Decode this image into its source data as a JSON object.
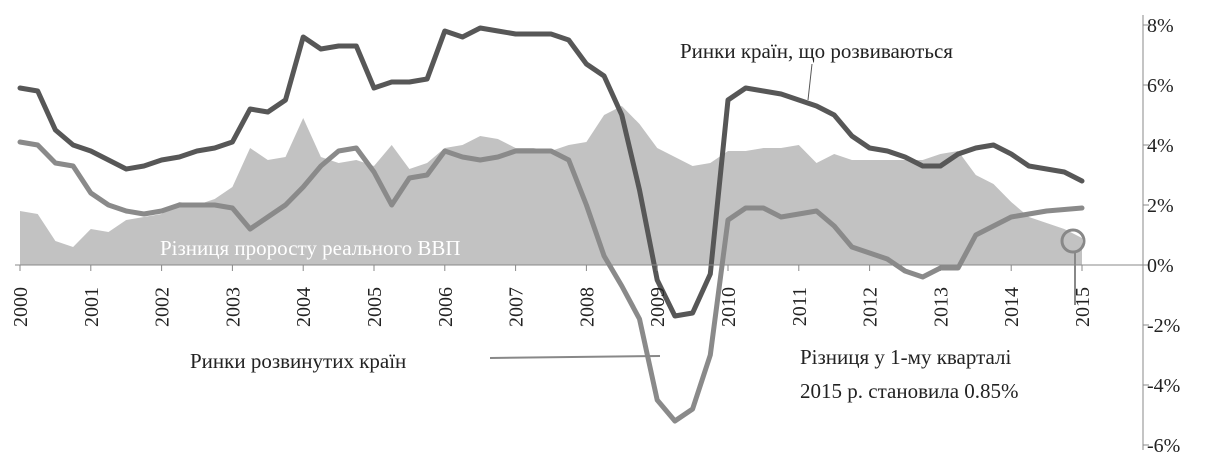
{
  "chart_data": {
    "type": "line",
    "x": [
      2000,
      2000.25,
      2000.5,
      2000.75,
      2001,
      2001.25,
      2001.5,
      2001.75,
      2002,
      2002.25,
      2002.5,
      2002.75,
      2003,
      2003.25,
      2003.5,
      2003.75,
      2004,
      2004.25,
      2004.5,
      2004.75,
      2005,
      2005.25,
      2005.5,
      2005.75,
      2006,
      2006.25,
      2006.5,
      2006.75,
      2007,
      2007.25,
      2007.5,
      2007.75,
      2008,
      2008.25,
      2008.5,
      2008.75,
      2009,
      2009.25,
      2009.5,
      2009.75,
      2010,
      2010.25,
      2010.5,
      2010.75,
      2011,
      2011.25,
      2011.5,
      2011.75,
      2012,
      2012.25,
      2012.5,
      2012.75,
      2013,
      2013.25,
      2013.5,
      2013.75,
      2014,
      2014.25,
      2014.5,
      2014.75,
      2015
    ],
    "series": [
      {
        "name": "Різниця проросту реального ВВП",
        "style": "area",
        "color": "#c2c2c2",
        "values": [
          1.8,
          1.7,
          0.8,
          0.6,
          1.2,
          1.1,
          1.5,
          1.6,
          1.7,
          2.1,
          2.0,
          2.2,
          2.6,
          3.9,
          3.5,
          3.6,
          4.9,
          3.6,
          3.4,
          3.5,
          3.3,
          4.0,
          3.2,
          3.4,
          3.9,
          4.0,
          4.3,
          4.2,
          3.9,
          3.9,
          3.8,
          4.0,
          4.1,
          5.0,
          5.3,
          4.7,
          3.9,
          3.6,
          3.3,
          3.4,
          3.8,
          3.8,
          3.9,
          3.9,
          4.0,
          3.4,
          3.7,
          3.5,
          3.5,
          3.5,
          3.5,
          3.5,
          3.7,
          3.8,
          3.0,
          2.7,
          2.1,
          1.6,
          1.4,
          1.2,
          0.9
        ]
      },
      {
        "name": "Ринки країн, що розвиваються",
        "style": "line",
        "color": "#575757",
        "values": [
          5.9,
          5.8,
          4.5,
          4.0,
          3.8,
          3.5,
          3.2,
          3.3,
          3.5,
          3.6,
          3.8,
          3.9,
          4.1,
          5.2,
          5.1,
          5.5,
          7.6,
          7.2,
          7.3,
          7.3,
          5.9,
          6.1,
          6.1,
          6.2,
          7.8,
          7.6,
          7.9,
          7.8,
          7.7,
          7.7,
          7.7,
          7.5,
          6.7,
          6.3,
          5.0,
          2.5,
          -0.5,
          -1.7,
          -1.6,
          -0.3,
          5.5,
          5.9,
          5.8,
          5.7,
          5.5,
          5.3,
          5.0,
          4.3,
          3.9,
          3.8,
          3.6,
          3.3,
          3.3,
          3.7,
          3.9,
          4.0,
          3.7,
          3.3,
          3.2,
          3.1,
          2.8
        ]
      },
      {
        "name": "Ринки розвинутих країн",
        "style": "line",
        "color": "#8a8a8a",
        "values": [
          4.1,
          4.0,
          3.4,
          3.3,
          2.4,
          2.0,
          1.8,
          1.7,
          1.8,
          2.0,
          2.0,
          2.0,
          1.9,
          1.2,
          1.6,
          2.0,
          2.6,
          3.3,
          3.8,
          3.9,
          3.1,
          2.0,
          2.9,
          3.0,
          3.8,
          3.6,
          3.5,
          3.6,
          3.8,
          3.8,
          3.8,
          3.5,
          2.0,
          0.3,
          -0.7,
          -1.8,
          -4.5,
          -5.2,
          -4.8,
          -3.0,
          1.5,
          1.9,
          1.9,
          1.6,
          1.7,
          1.8,
          1.3,
          0.6,
          0.4,
          0.2,
          -0.2,
          -0.4,
          -0.1,
          -0.1,
          1.0,
          1.3,
          1.6,
          1.7,
          1.8,
          1.85,
          1.9
        ]
      }
    ],
    "xlim": [
      2000,
      2015
    ],
    "xticks": [
      2000,
      2001,
      2002,
      2003,
      2004,
      2005,
      2006,
      2007,
      2008,
      2009,
      2010,
      2011,
      2012,
      2013,
      2014,
      2015
    ],
    "ylim": [
      -6,
      8
    ],
    "yticks": [
      {
        "value": 8,
        "label": "8%"
      },
      {
        "value": 6,
        "label": "6%"
      },
      {
        "value": 4,
        "label": "4%"
      },
      {
        "value": 2,
        "label": "2%"
      },
      {
        "value": 0,
        "label": "0%"
      },
      {
        "value": -2,
        "label": "-2%"
      },
      {
        "value": -4,
        "label": "-4%"
      },
      {
        "value": -6,
        "label": "-6%"
      }
    ],
    "annotation": [
      "Різниця у 1-му кварталі",
      "2015 р. становила 0.85%"
    ]
  }
}
